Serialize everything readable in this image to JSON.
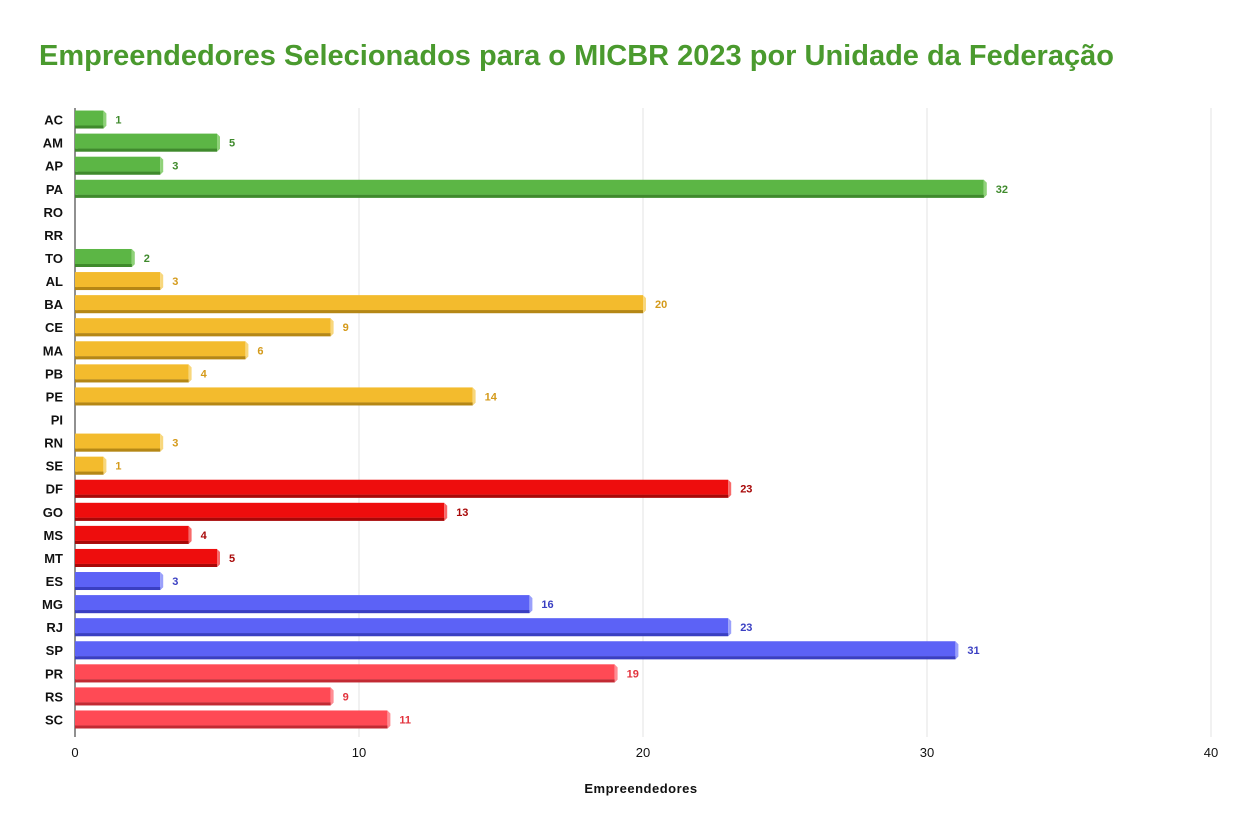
{
  "chart_data": {
    "type": "bar",
    "orientation": "horizontal",
    "title": "Empreendedores Selecionados para o MICBR 2023 por Unidade da Federação",
    "xlabel": "Empreendedores",
    "ylabel": "",
    "xlim": [
      0,
      40
    ],
    "x_ticks": [
      "0",
      "10",
      "20",
      "30",
      "40"
    ],
    "grid": true,
    "categories": [
      "AC",
      "AM",
      "AP",
      "PA",
      "RO",
      "RR",
      "TO",
      "AL",
      "BA",
      "CE",
      "MA",
      "PB",
      "PE",
      "PI",
      "RN",
      "SE",
      "DF",
      "GO",
      "MS",
      "MT",
      "ES",
      "MG",
      "RJ",
      "SP",
      "PR",
      "RS",
      "SC"
    ],
    "values": [
      1,
      5,
      3,
      32,
      0,
      0,
      2,
      3,
      20,
      9,
      6,
      4,
      14,
      0,
      3,
      1,
      23,
      13,
      4,
      5,
      3,
      16,
      23,
      31,
      19,
      9,
      11
    ],
    "value_labels": [
      "1",
      "5",
      "3",
      "32",
      "",
      "",
      "2",
      "3",
      "20",
      "9",
      "6",
      "4",
      "14",
      "",
      "3",
      "1",
      "23",
      "13",
      "4",
      "5",
      "3",
      "16",
      "23",
      "31",
      "19",
      "9",
      "11"
    ],
    "groups": [
      "north",
      "north",
      "north",
      "north",
      "north",
      "north",
      "north",
      "northeast",
      "northeast",
      "northeast",
      "northeast",
      "northeast",
      "northeast",
      "northeast",
      "northeast",
      "northeast",
      "centerwest",
      "centerwest",
      "centerwest",
      "centerwest",
      "southeast",
      "southeast",
      "southeast",
      "southeast",
      "south",
      "south",
      "south"
    ],
    "group_colors": {
      "north": {
        "bar": "#5cb645",
        "dark": "#3f8a2c",
        "light": "#8fd279",
        "label": "#3f8a2c"
      },
      "northeast": {
        "bar": "#f3bb2d",
        "dark": "#b58715",
        "light": "#f8d77c",
        "label": "#d49a1a"
      },
      "centerwest": {
        "bar": "#ee0d0d",
        "dark": "#a80808",
        "light": "#f86a6a",
        "label": "#a80808"
      },
      "southeast": {
        "bar": "#5c62f6",
        "dark": "#3a3fc2",
        "light": "#9aa0fb",
        "label": "#3a3fc2"
      },
      "south": {
        "bar": "#ff4a55",
        "dark": "#c22a33",
        "light": "#ff8d94",
        "label": "#e2323c"
      }
    }
  }
}
